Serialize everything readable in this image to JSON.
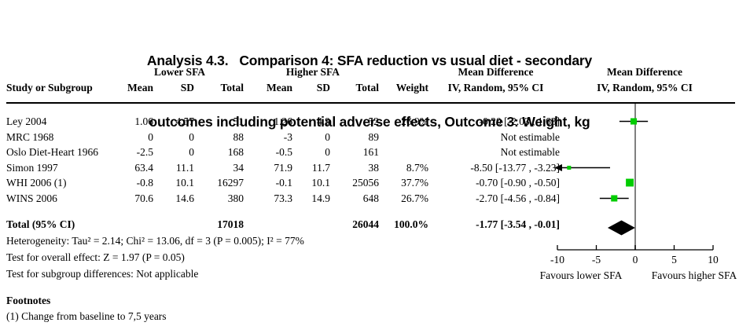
{
  "title": {
    "line1": "Analysis 4.3.   Comparison 4: SFA reduction vs usual diet - secondary",
    "line2": "outcomes including potential adverse effects, Outcome 3: Weight, kg"
  },
  "table": {
    "group_headers": {
      "lower": "Lower SFA",
      "higher": "Higher SFA",
      "md_left": "Mean Difference",
      "md_right": "Mean Difference",
      "iv_left": "IV, Random, 95% CI",
      "iv_right": "IV, Random, 95% CI"
    },
    "col_headers": {
      "study": "Study or Subgroup",
      "mean": "Mean",
      "sd": "SD",
      "total": "Total",
      "weight": "Weight"
    },
    "rows": [
      {
        "study": "Ley 2004",
        "mean1": "1.06",
        "sd1": "4.57",
        "total1": "51",
        "mean2": "1.26",
        "sd2": "4.9",
        "total2": "52",
        "weight": "26.9%",
        "ci": "-0.20 [-2.03 , 1.63]"
      },
      {
        "study": "MRC 1968",
        "mean1": "0",
        "sd1": "0",
        "total1": "88",
        "mean2": "-3",
        "sd2": "0",
        "total2": "89",
        "weight": "",
        "ci": "Not estimable"
      },
      {
        "study": "Oslo Diet-Heart 1966",
        "mean1": "-2.5",
        "sd1": "0",
        "total1": "168",
        "mean2": "-0.5",
        "sd2": "0",
        "total2": "161",
        "weight": "",
        "ci": "Not estimable"
      },
      {
        "study": "Simon 1997",
        "mean1": "63.4",
        "sd1": "11.1",
        "total1": "34",
        "mean2": "71.9",
        "sd2": "11.7",
        "total2": "38",
        "weight": "8.7%",
        "ci": "-8.50 [-13.77 , -3.23]"
      },
      {
        "study": "WHI 2006 (1)",
        "mean1": "-0.8",
        "sd1": "10.1",
        "total1": "16297",
        "mean2": "-0.1",
        "sd2": "10.1",
        "total2": "25056",
        "weight": "37.7%",
        "ci": "-0.70 [-0.90 , -0.50]"
      },
      {
        "study": "WINS 2006",
        "mean1": "70.6",
        "sd1": "14.6",
        "total1": "380",
        "mean2": "73.3",
        "sd2": "14.9",
        "total2": "648",
        "weight": "26.7%",
        "ci": "-2.70 [-4.56 , -0.84]"
      }
    ],
    "total_row": {
      "label": "Total (95% CI)",
      "total1": "17018",
      "total2": "26044",
      "weight": "100.0%",
      "ci": "-1.77 [-3.54 , -0.01]"
    },
    "footer_lines": [
      "Heterogeneity: Tau² = 2.14; Chi² = 13.06, df = 3 (P = 0.005); I² = 77%",
      "Test for overall effect: Z = 1.97 (P = 0.05)",
      "Test for subgroup differences: Not applicable"
    ]
  },
  "footnotes": {
    "heading": "Footnotes",
    "items": [
      "(1) Change from baseline to 7,5 years"
    ]
  },
  "chart_data": {
    "type": "forest",
    "effect_measure": "Mean Difference, IV, Random, 95% CI",
    "xlim": [
      -10,
      10
    ],
    "axis_ticks": [
      "-10",
      "-5",
      "0",
      "5",
      "10"
    ],
    "tick_values": [
      -10,
      -5,
      0,
      5,
      10
    ],
    "xlabel_left": "Favours lower SFA",
    "xlabel_right": "Favours higher SFA",
    "marker_color": "#00cc00",
    "line_color": "#000000",
    "zero_line_color": "#808080",
    "studies": [
      {
        "name": "Ley 2004",
        "md": -0.2,
        "ci_low": -2.03,
        "ci_high": 1.63,
        "weight": 26.9
      },
      {
        "name": "MRC 1968",
        "md": null,
        "ci_low": null,
        "ci_high": null,
        "weight": null
      },
      {
        "name": "Oslo Diet-Heart 1966",
        "md": null,
        "ci_low": null,
        "ci_high": null,
        "weight": null
      },
      {
        "name": "Simon 1997",
        "md": -8.5,
        "ci_low": -13.77,
        "ci_high": -3.23,
        "weight": 8.7
      },
      {
        "name": "WHI 2006 (1)",
        "md": -0.7,
        "ci_low": -0.9,
        "ci_high": -0.5,
        "weight": 37.7
      },
      {
        "name": "WINS 2006",
        "md": -2.7,
        "ci_low": -4.56,
        "ci_high": -0.84,
        "weight": 26.7
      }
    ],
    "total": {
      "md": -1.77,
      "ci_low": -3.54,
      "ci_high": -0.01
    }
  }
}
